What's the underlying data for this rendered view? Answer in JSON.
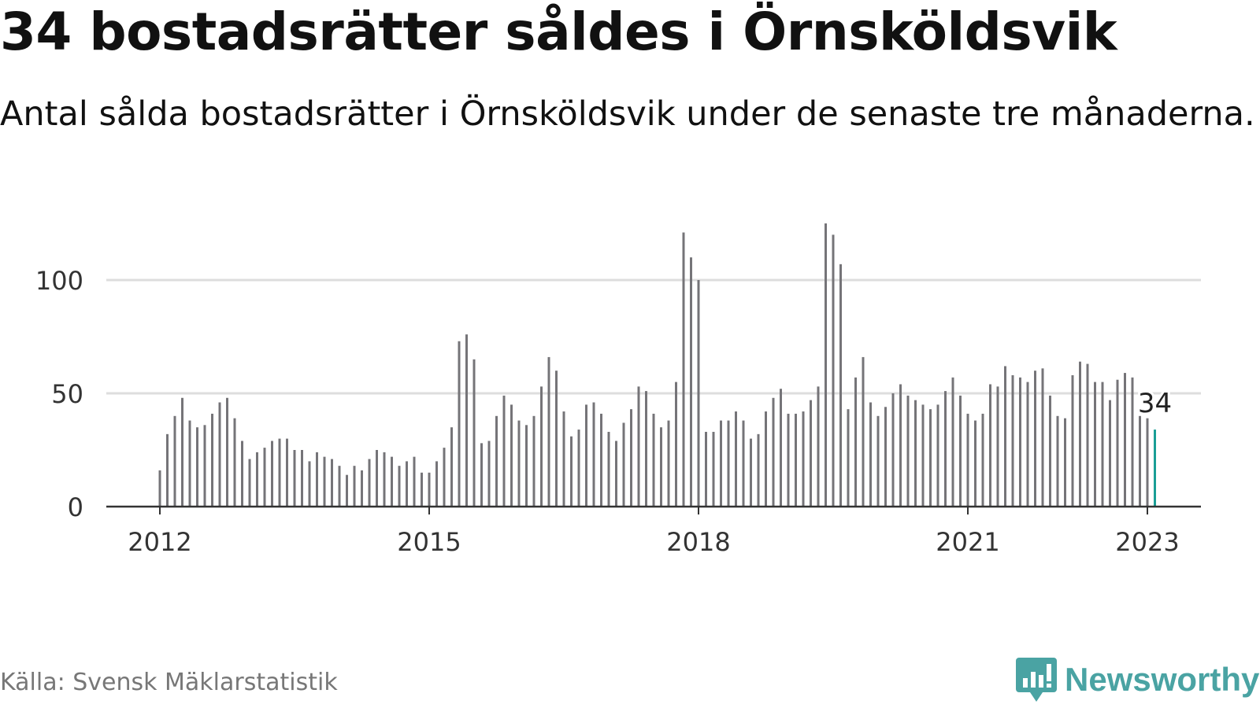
{
  "header": {
    "title": "34 bostadsrätter såldes i Örnsköldsvik",
    "subtitle": "Antal sålda bostadsrätter i Örnsköldsvik under de senaste tre månaderna."
  },
  "footer": {
    "source": "Källa: Svensk Mäklarstatistik",
    "brand": "Newsworthy",
    "brand_icon": "newsworthy-logo-icon"
  },
  "colors": {
    "bar": "#757478",
    "highlight": "#1a9e95",
    "grid": "#dddddd",
    "axis": "#333333",
    "brand": "#4aa3a3"
  },
  "chart_data": {
    "type": "bar",
    "x_start": "2012-01",
    "x_end": "2023-01",
    "ylim": [
      0,
      125
    ],
    "yticks": [
      0,
      50,
      100
    ],
    "xticks": [
      "2012",
      "2015",
      "2018",
      "2021",
      "2023"
    ],
    "grid": "horizontal",
    "highlight_label": "34",
    "values": [
      16,
      32,
      40,
      48,
      38,
      35,
      36,
      41,
      46,
      48,
      39,
      29,
      21,
      24,
      26,
      29,
      30,
      30,
      25,
      25,
      20,
      24,
      22,
      21,
      18,
      14,
      18,
      16,
      21,
      25,
      24,
      22,
      18,
      20,
      22,
      15,
      15,
      20,
      26,
      35,
      73,
      76,
      65,
      28,
      29,
      40,
      49,
      45,
      38,
      36,
      40,
      53,
      66,
      60,
      42,
      31,
      34,
      45,
      46,
      41,
      33,
      29,
      37,
      43,
      53,
      51,
      41,
      35,
      38,
      55,
      121,
      110,
      100,
      33,
      33,
      38,
      38,
      42,
      38,
      30,
      32,
      42,
      48,
      52,
      41,
      41,
      42,
      47,
      53,
      125,
      120,
      107,
      43,
      57,
      66,
      46,
      40,
      44,
      50,
      54,
      49,
      47,
      45,
      43,
      45,
      51,
      57,
      49,
      41,
      38,
      41,
      54,
      53,
      62,
      58,
      57,
      55,
      60,
      61,
      49,
      40,
      39,
      58,
      64,
      63,
      55,
      55,
      47,
      56,
      59,
      57,
      40,
      39,
      34
    ]
  }
}
